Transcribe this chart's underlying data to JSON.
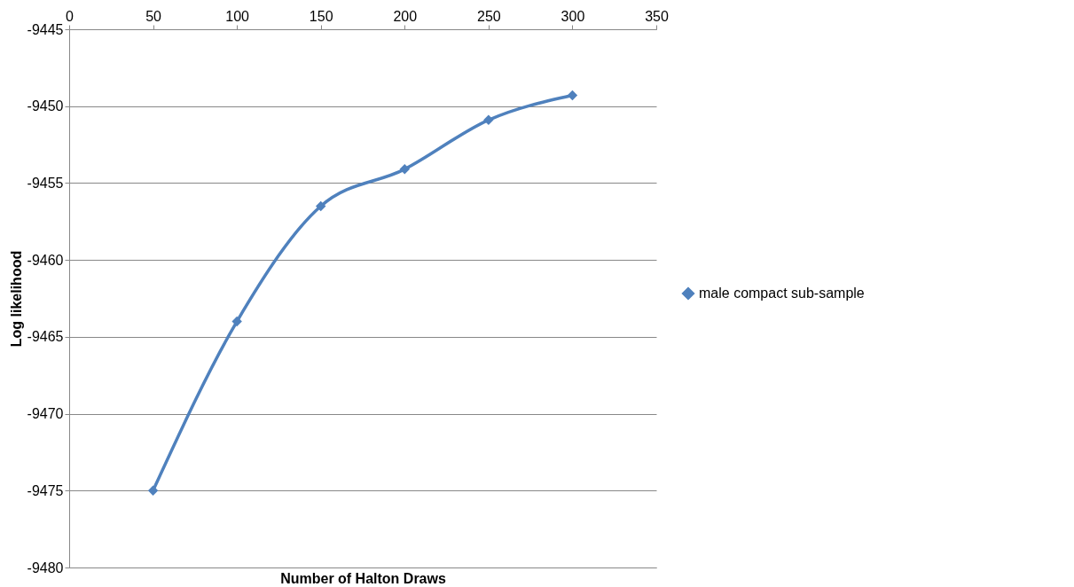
{
  "chart_data": {
    "type": "line",
    "xlabel": "Number of Halton Draws",
    "ylabel": "Log likelihood",
    "x": [
      50,
      100,
      150,
      200,
      250,
      300
    ],
    "series": [
      {
        "name": "male compact sub-sample",
        "color": "#4f81bd",
        "values": [
          -9475.0,
          -9464.0,
          -9456.5,
          -9454.1,
          -9450.9,
          -9449.3
        ]
      }
    ],
    "xlim": [
      0,
      350
    ],
    "xticks": [
      0,
      50,
      100,
      150,
      200,
      250,
      300,
      350
    ],
    "ylim": [
      -9480,
      -9445
    ],
    "yticks": [
      -9480,
      -9475,
      -9470,
      -9465,
      -9460,
      -9455,
      -9450,
      -9445
    ],
    "grid": "y",
    "legend": "right",
    "marker": "diamond",
    "line_style": "solid"
  }
}
